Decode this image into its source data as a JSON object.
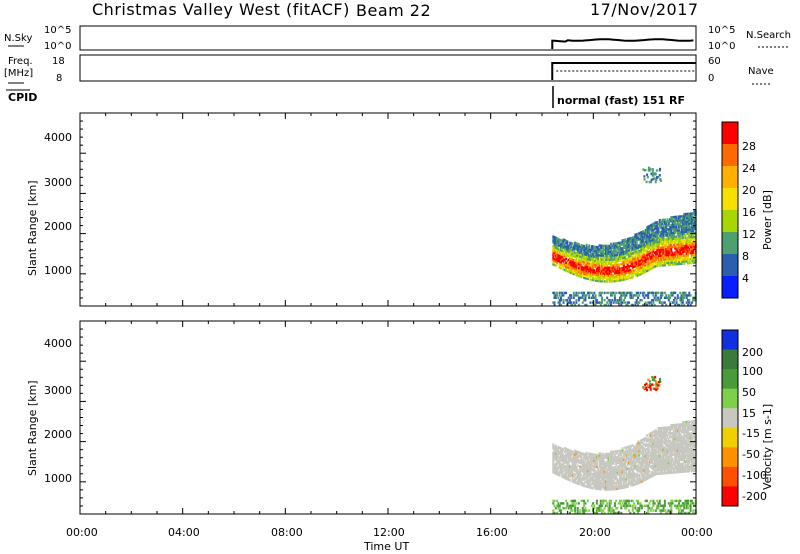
{
  "header": {
    "title": "Christmas Valley West (fitACF)",
    "beam": "Beam 22",
    "date": "17/Nov/2017"
  },
  "top_panels": {
    "nsky_label": "N.Sky",
    "nsky_ticks": [
      "10^5",
      "10^0"
    ],
    "nsearch_label": "N.Search",
    "nsearch_ticks": [
      "10^5",
      "10^0"
    ],
    "freq_label_1": "Freq.",
    "freq_label_2": "[MHz]",
    "freq_ticks": [
      "18",
      "8"
    ],
    "nave_label": "Nave",
    "nave_ticks": [
      "60",
      "0"
    ],
    "cpid_label": "CPID",
    "cpid_text": "normal (fast) 151 RF"
  },
  "chart_data": [
    {
      "type": "heatmap",
      "name": "power",
      "ylabel": "Slant Range [km]",
      "yticks": [
        "4000",
        "3000",
        "2000",
        "1000"
      ],
      "ylim": [
        200,
        4600
      ],
      "xlim": [
        0,
        24
      ],
      "data_start_hour": 18.4,
      "colorbar_label": "Power [dB]",
      "colorbar_ticks": [
        "28",
        "24",
        "20",
        "16",
        "12",
        "8",
        "4"
      ],
      "colorbar_colors": [
        "#ff0000",
        "#ff6a00",
        "#ffb000",
        "#f7e000",
        "#a7d600",
        "#4fa070",
        "#2b5fae",
        "#0a1fff"
      ]
    },
    {
      "type": "heatmap",
      "name": "velocity",
      "ylabel": "Slant Range [km]",
      "yticks": [
        "4000",
        "3000",
        "2000",
        "1000"
      ],
      "ylim": [
        200,
        4600
      ],
      "xlim": [
        0,
        24
      ],
      "colorbar_label": "Velocity [m s-1]",
      "colorbar_ticks": [
        "200",
        "100",
        "50",
        "15",
        "-15",
        "-50",
        "-100",
        "-200"
      ],
      "colorbar_colors": [
        "#1030e0",
        "#3a7a3a",
        "#4a9a3a",
        "#7ed04a",
        "#c8c8c0",
        "#f0d000",
        "#ff9000",
        "#ff5000",
        "#ff0000"
      ]
    }
  ],
  "x_axis": {
    "ticks": [
      "00:00",
      "04:00",
      "08:00",
      "12:00",
      "16:00",
      "20:00",
      "00:00"
    ],
    "label": "Time UT"
  }
}
